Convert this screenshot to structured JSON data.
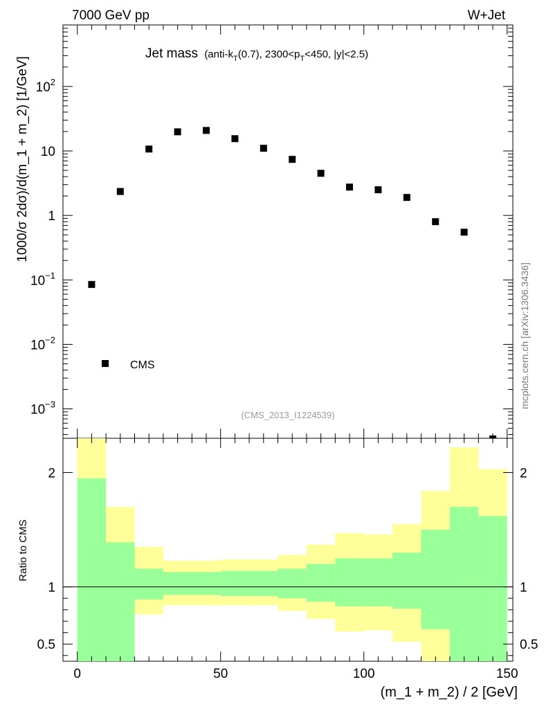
{
  "header": {
    "left": "7000 GeV pp",
    "right": "W+Jet"
  },
  "title_main": "Jet mass",
  "title_sub": {
    "a": "(anti-k",
    "b": "T",
    "c": "(0.7), 2300<p",
    "d": "T",
    "e": "<450, |y|<2.5)"
  },
  "analysis_id": "(CMS_2013_I1224539)",
  "side_note": "mcplots.cern.ch [arXiv:1306.3436]",
  "legend": {
    "marker": "CMS"
  },
  "colors": {
    "green": "#99ff99",
    "yellow": "#ffff99",
    "marker": "#000000"
  },
  "chart_data": [
    {
      "type": "scatter",
      "title": "Jet mass",
      "ylabel": "1000/σ 2dσ)/d(m_1 + m_2) [1/GeV]",
      "yscale": "log",
      "xlim": [
        -5,
        152
      ],
      "ylim": [
        0.00035,
        900
      ],
      "y_ticks": [
        {
          "value": 0.001,
          "base": "10",
          "exp": "−3"
        },
        {
          "value": 0.01,
          "base": "10",
          "exp": "−2"
        },
        {
          "value": 0.1,
          "base": "10",
          "exp": "−1"
        },
        {
          "value": 1,
          "base": "1",
          "exp": ""
        },
        {
          "value": 10,
          "base": "10",
          "exp": ""
        },
        {
          "value": 100,
          "base": "10",
          "exp": "2"
        }
      ],
      "series": [
        {
          "name": "CMS",
          "x": [
            5,
            15,
            25,
            35,
            45,
            55,
            65,
            75,
            85,
            95,
            105,
            115,
            125,
            135,
            145
          ],
          "y": [
            0.085,
            2.35,
            10.7,
            19.8,
            20.8,
            15.5,
            11.0,
            7.4,
            4.5,
            2.75,
            2.5,
            1.9,
            0.8,
            0.55,
            0.00029
          ]
        }
      ]
    },
    {
      "type": "area",
      "ylabel": "Ratio to CMS",
      "xlabel": "(m_1 + m_2) / 2 [GeV]",
      "xlim": [
        -5,
        152
      ],
      "ylim": [
        0.35,
        2.3
      ],
      "x_ticks": [
        0,
        50,
        100,
        150
      ],
      "y_ticks": [
        0.5,
        1,
        2
      ],
      "bins": [
        0,
        10,
        20,
        30,
        40,
        50,
        60,
        70,
        80,
        90,
        100,
        110,
        120,
        130,
        140,
        150
      ],
      "band_total_up": [
        2.32,
        1.7,
        1.35,
        1.23,
        1.23,
        1.24,
        1.24,
        1.28,
        1.37,
        1.47,
        1.46,
        1.55,
        1.84,
        2.22,
        2.03
      ],
      "band_total_down": [
        0.3,
        0.72,
        0.76,
        0.84,
        0.84,
        0.84,
        0.84,
        0.79,
        0.72,
        0.61,
        0.62,
        0.52,
        0.3,
        0.3,
        0.47
      ],
      "band_stat_up": [
        1.95,
        1.39,
        1.16,
        1.13,
        1.13,
        1.14,
        1.14,
        1.16,
        1.2,
        1.25,
        1.25,
        1.3,
        1.5,
        1.7,
        1.62
      ],
      "band_stat_down": [
        0.3,
        0.3,
        0.89,
        0.93,
        0.93,
        0.92,
        0.92,
        0.9,
        0.87,
        0.83,
        0.83,
        0.81,
        0.63,
        0.3,
        0.3
      ]
    }
  ]
}
